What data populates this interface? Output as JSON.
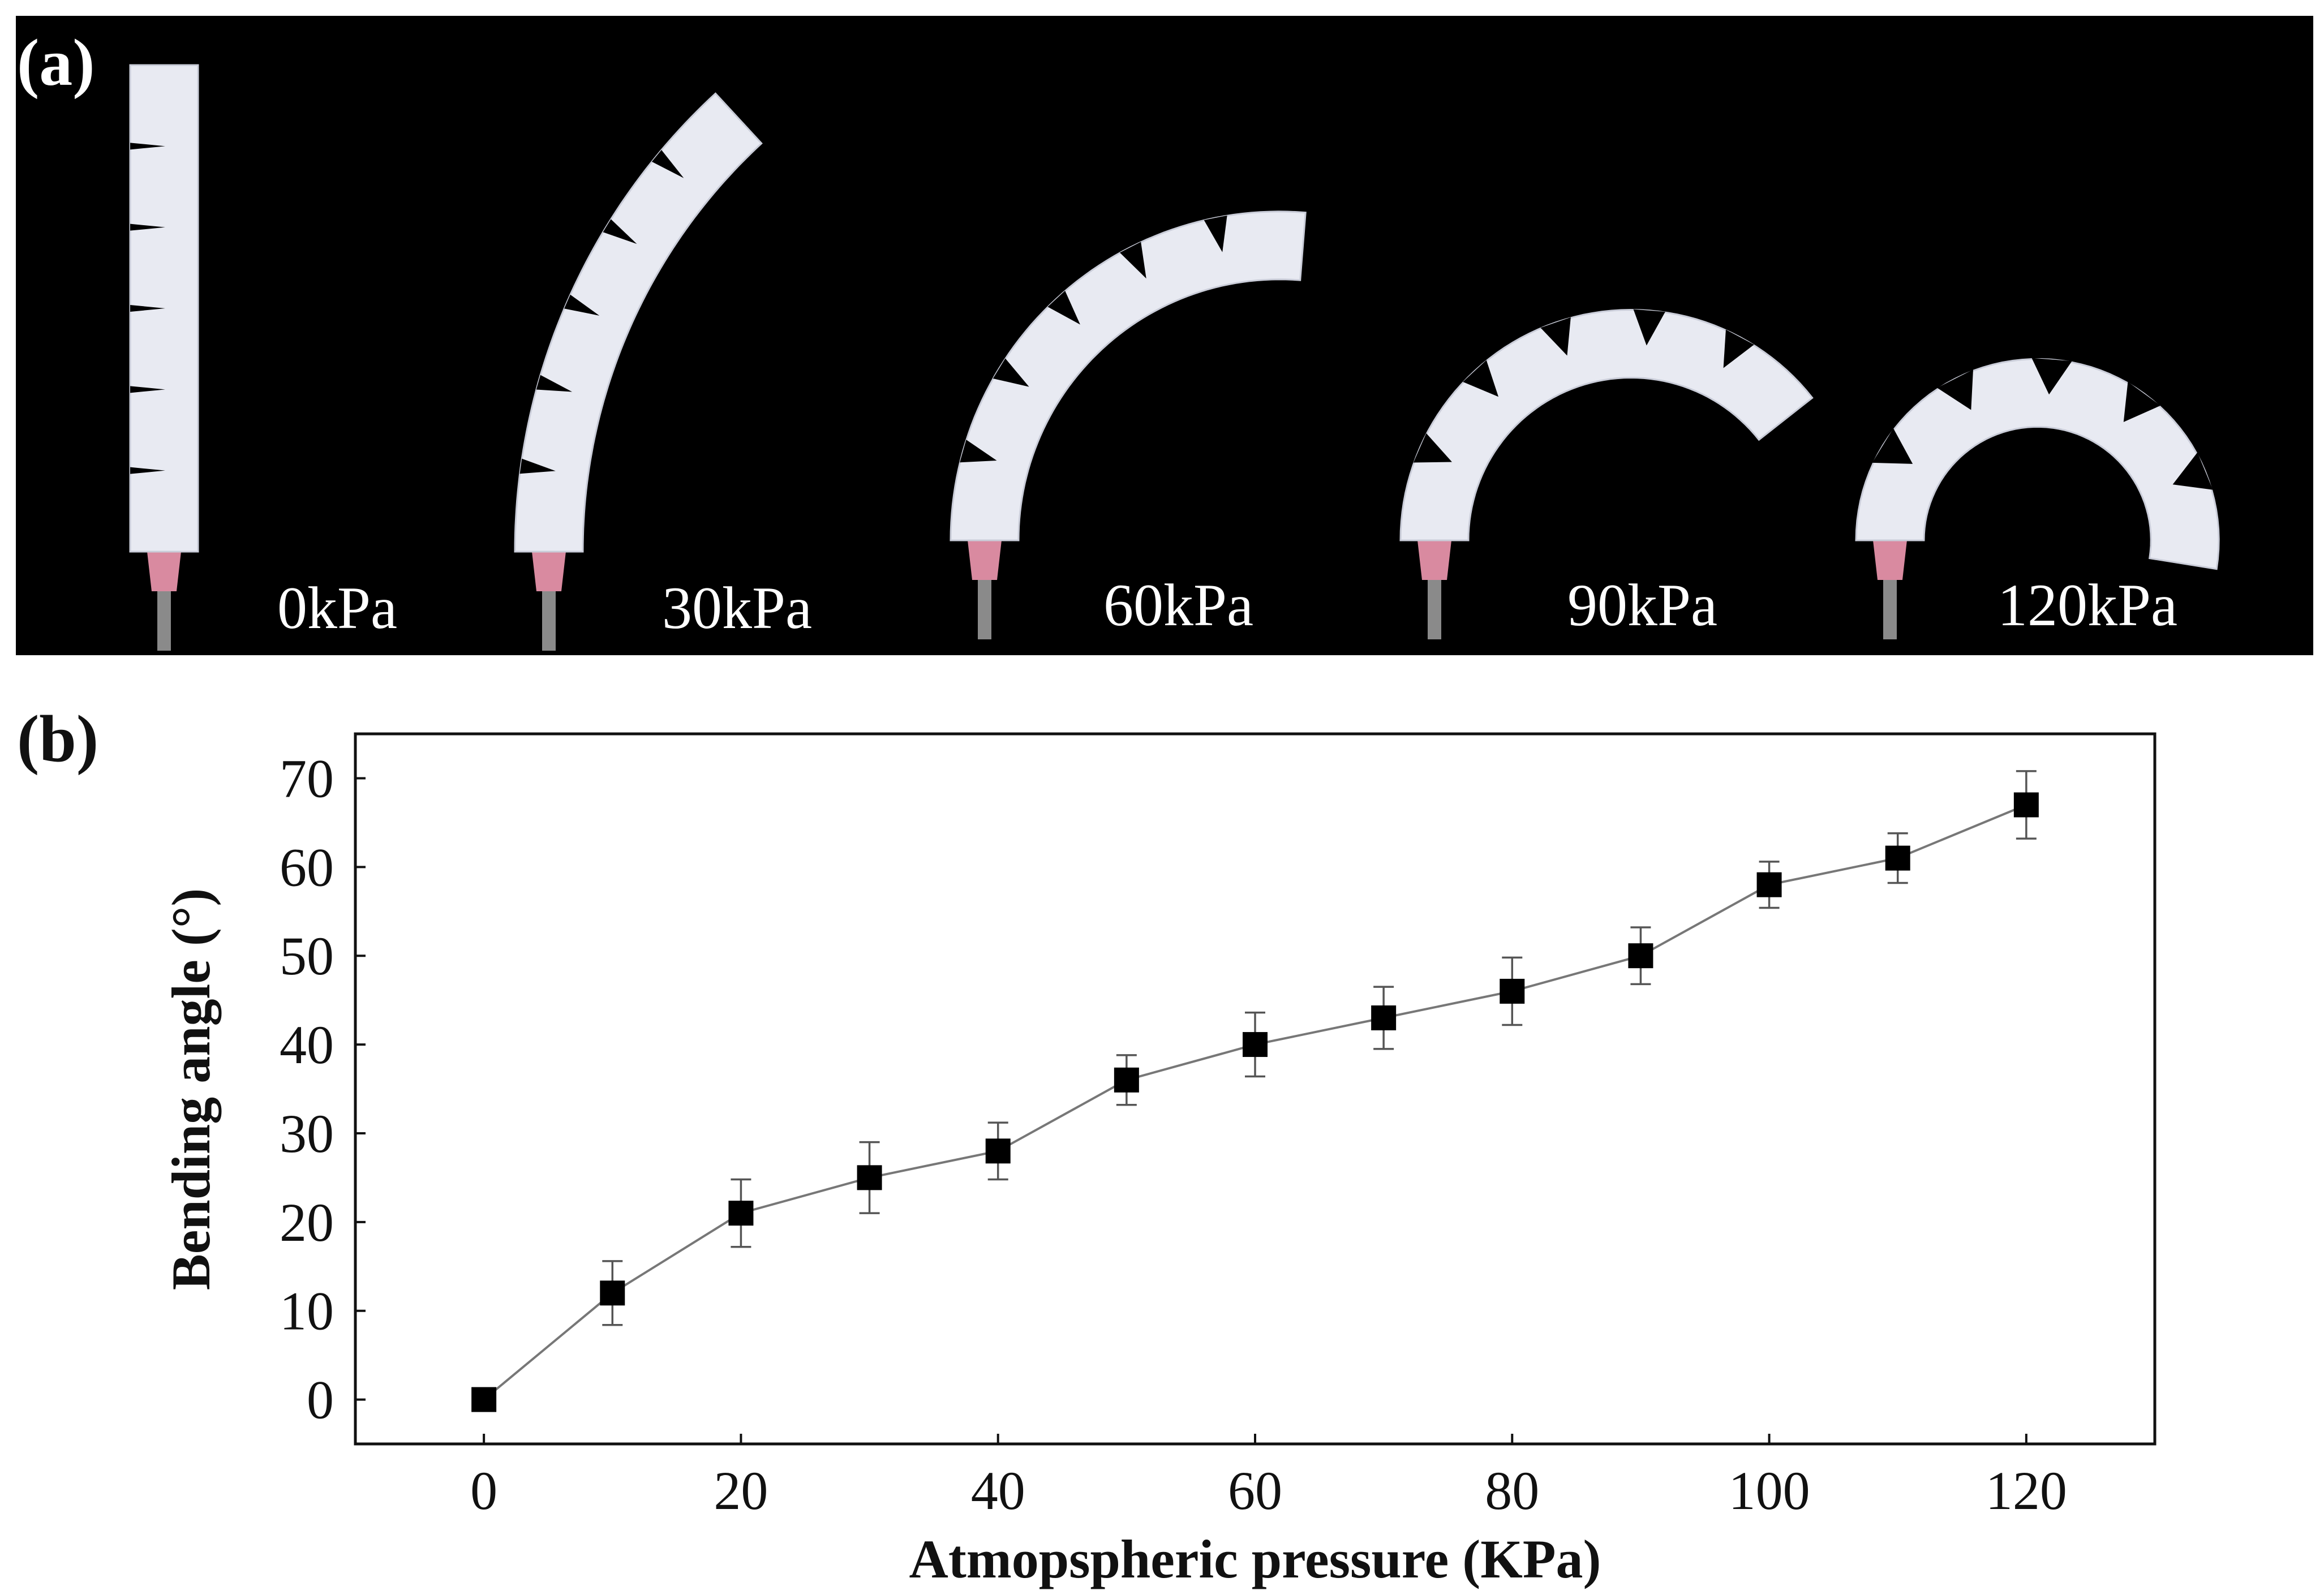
{
  "panel_a": {
    "label": "(a)",
    "background_color": "#000000",
    "actuator_color": "#e8eaf2",
    "nozzle_color": "#d98aa0",
    "states": [
      {
        "pressure_label": "0kPa",
        "pressure_kpa": 0
      },
      {
        "pressure_label": "30kPa",
        "pressure_kpa": 30
      },
      {
        "pressure_label": "60kPa",
        "pressure_kpa": 60
      },
      {
        "pressure_label": "90kPa",
        "pressure_kpa": 90
      },
      {
        "pressure_label": "120kPa",
        "pressure_kpa": 120
      }
    ]
  },
  "panel_b": {
    "label": "(b)"
  },
  "chart_data": {
    "type": "line",
    "title": "",
    "xlabel": "Atmopspheric pressure (KPa)",
    "ylabel": "Bending angle (°)",
    "xlim": [
      -10,
      130
    ],
    "ylim": [
      -5,
      75
    ],
    "xticks": [
      0,
      20,
      40,
      60,
      80,
      100,
      120
    ],
    "yticks": [
      0,
      10,
      20,
      30,
      40,
      50,
      60,
      70
    ],
    "marker": "square",
    "line_color": "#777777",
    "marker_color": "#000000",
    "series": [
      {
        "name": "Bending angle",
        "x": [
          0,
          10,
          20,
          30,
          40,
          50,
          60,
          70,
          80,
          90,
          100,
          110,
          120
        ],
        "y": [
          0,
          12,
          21,
          25,
          28,
          36,
          40,
          43,
          46,
          50,
          58,
          61,
          67
        ],
        "error": [
          0,
          3.6,
          3.8,
          4,
          3.2,
          2.8,
          3.6,
          3.5,
          3.8,
          3.2,
          2.6,
          2.8,
          3.8
        ]
      }
    ]
  }
}
